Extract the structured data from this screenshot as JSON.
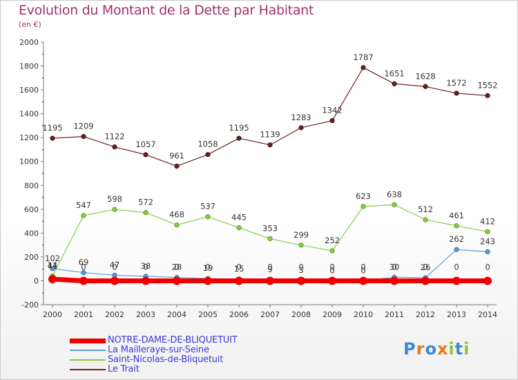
{
  "chart_data": {
    "type": "line",
    "title": "Evolution du Montant de la Dette par Habitant",
    "subtitle": "(en €)",
    "xlabel": "",
    "ylabel": "",
    "x": [
      "2000",
      "2001",
      "2002",
      "2003",
      "2004",
      "2005",
      "2006",
      "2007",
      "2008",
      "2009",
      "2010",
      "2011",
      "2012",
      "2013",
      "2014"
    ],
    "ylim": [
      -200,
      2000
    ],
    "yticks": [
      -200,
      0,
      200,
      400,
      600,
      800,
      1000,
      1200,
      1400,
      1600,
      1800,
      2000
    ],
    "grid": false,
    "legend_position": "bottom-left",
    "series": [
      {
        "name": "NOTRE-DAME-DE-BLIQUETUIT",
        "color": "#ee0000",
        "values": [
          14,
          0,
          0,
          0,
          0,
          0,
          0,
          0,
          0,
          0,
          0,
          0,
          0,
          0,
          0
        ],
        "labels": [
          "14",
          "0",
          "0",
          "0",
          "0",
          "0",
          "0",
          "0",
          "0",
          "0",
          "0",
          "0",
          "0",
          "0",
          "0"
        ]
      },
      {
        "name": "La Mailleraye-sur-Seine",
        "color": "#5b9bd5",
        "values": [
          102,
          69,
          47,
          38,
          28,
          19,
          15,
          9,
          3,
          0,
          0,
          30,
          26,
          262,
          243
        ],
        "labels": [
          "102",
          "69",
          "47",
          "38",
          "28",
          "19",
          "15",
          "9",
          "3",
          "0",
          "0",
          "30",
          "26",
          "262",
          "243"
        ]
      },
      {
        "name": "Saint-Nicolas-de-Bliquetuit",
        "color": "#88cc44",
        "values": [
          41,
          547,
          598,
          572,
          468,
          537,
          445,
          353,
          299,
          252,
          623,
          638,
          512,
          461,
          412
        ],
        "labels": [
          "41",
          "547",
          "598",
          "572",
          "468",
          "537",
          "445",
          "353",
          "299",
          "252",
          "623",
          "638",
          "512",
          "461",
          "412"
        ]
      },
      {
        "name": "Le Trait",
        "color": "#6b1f1f",
        "values": [
          1195,
          1209,
          1122,
          1057,
          961,
          1058,
          1195,
          1139,
          1283,
          1342,
          1787,
          1651,
          1628,
          1572,
          1552
        ],
        "labels": [
          "1195",
          "1209",
          "1122",
          "1057",
          "961",
          "1058",
          "1195",
          "1139",
          "1283",
          "1342",
          "1787",
          "1651",
          "1628",
          "1572",
          "1552"
        ]
      }
    ]
  },
  "logo": {
    "letters": [
      "P",
      "r",
      "o",
      "x",
      "i",
      "t",
      "i"
    ],
    "colors": [
      "#3a8ad8",
      "#e87a1a",
      "#3a8ad8",
      "#e87a1a",
      "#8cc43a",
      "#3a8ad8",
      "#8cc43a"
    ]
  }
}
